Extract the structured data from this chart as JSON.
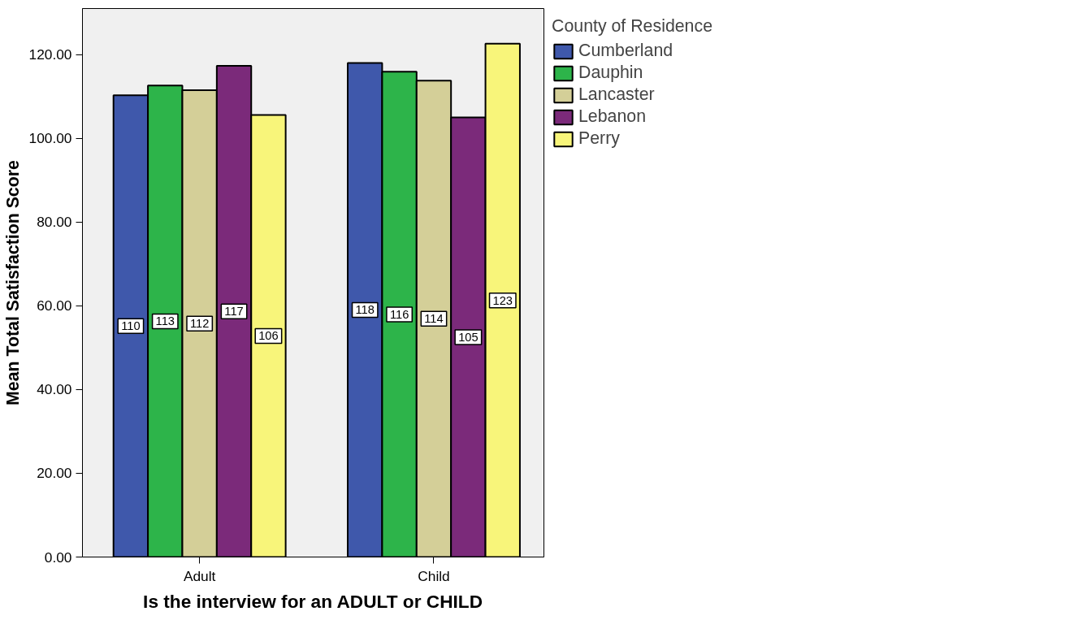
{
  "chart_data": {
    "type": "bar",
    "xlabel": "Is the interview for an ADULT or CHILD",
    "ylabel": "Mean Total Satisfaction Score",
    "legend_title": "County of Residence",
    "legend": "top right",
    "grid": false,
    "categories": [
      "Adult",
      "Child"
    ],
    "series": [
      {
        "name": "Cumberland",
        "color": "#3f58ab",
        "values": [
          110.3,
          118.0
        ],
        "value_labels": [
          "110",
          "118"
        ]
      },
      {
        "name": "Dauphin",
        "color": "#2db44a",
        "values": [
          112.6,
          115.9
        ],
        "value_labels": [
          "113",
          "116"
        ]
      },
      {
        "name": "Lancaster",
        "color": "#d4cf98",
        "values": [
          111.5,
          113.8
        ],
        "value_labels": [
          "112",
          "114"
        ]
      },
      {
        "name": "Lebanon",
        "color": "#7b2a7a",
        "values": [
          117.3,
          105.0
        ],
        "value_labels": [
          "117",
          "105"
        ]
      },
      {
        "name": "Perry",
        "color": "#f8f57a",
        "values": [
          105.6,
          122.6
        ],
        "value_labels": [
          "106",
          "123"
        ]
      }
    ],
    "ylim": [
      0,
      131
    ],
    "yticks": [
      {
        "value": 0,
        "label": "0.00"
      },
      {
        "value": 20,
        "label": "20.00"
      },
      {
        "value": 40,
        "label": "40.00"
      },
      {
        "value": 60,
        "label": "60.00"
      },
      {
        "value": 80,
        "label": "80.00"
      },
      {
        "value": 100,
        "label": "100.00"
      },
      {
        "value": 120,
        "label": "120.00"
      }
    ]
  }
}
